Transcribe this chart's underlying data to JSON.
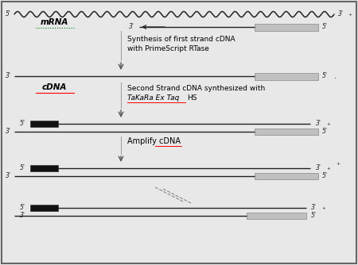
{
  "background_color": "#e8e8e8",
  "white_bg": "#ffffff",
  "border_color": "#666666",
  "line_color": "#222222",
  "gray_box_color": "#c0c0c0",
  "black_box_color": "#111111",
  "arrow_color": "#555555",
  "mRNA_label": "mRNA",
  "cDNA_label": "cDNA",
  "text1_line1": "Synthesis of first strand cDNA",
  "text1_line2": "with PrimeScript RTase",
  "text2_line1": "Second Strand cDNA synthesized with",
  "text2_italic": "TaKaRa Ex Taq",
  "text2_suffix": "HS",
  "text3": "Amplify cDNA",
  "fig_width": 4.5,
  "fig_height": 3.34,
  "dpi": 100
}
